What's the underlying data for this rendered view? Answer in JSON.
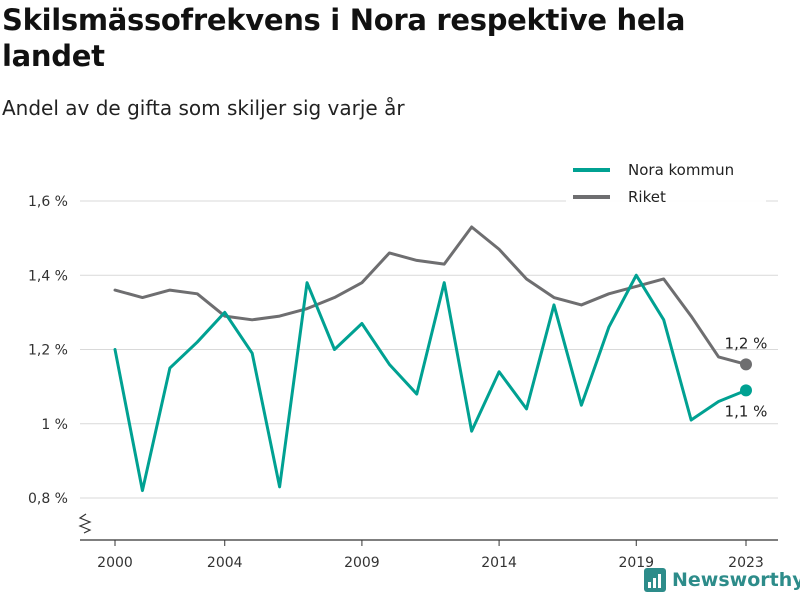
{
  "header": {
    "title": "Skilsmässofrekvens i Nora respektive hela landet",
    "subtitle": "Andel av de gifta som skiljer sig varje år"
  },
  "brand": {
    "name": "Newsworthy",
    "color": "#2d8c8a",
    "icon": "bar-chart-logo-icon"
  },
  "chart_data": {
    "type": "line",
    "x": [
      2000,
      2001,
      2002,
      2003,
      2004,
      2005,
      2006,
      2007,
      2008,
      2009,
      2010,
      2011,
      2012,
      2013,
      2014,
      2015,
      2016,
      2017,
      2018,
      2019,
      2020,
      2021,
      2022,
      2023
    ],
    "x_ticks": [
      2000,
      2004,
      2009,
      2014,
      2019,
      2023
    ],
    "y_ticks": [
      0.8,
      1.0,
      1.2,
      1.4,
      1.6
    ],
    "y_tick_labels": [
      "0,8 %",
      "1 %",
      "1,2 %",
      "1,4 %",
      "1,6 %"
    ],
    "ylim": [
      0.7,
      1.65
    ],
    "y_axis_break": true,
    "grid": "horizontal",
    "legend_position": "top-right",
    "series": [
      {
        "name": "Nora kommun",
        "color": "#00a192",
        "values": [
          1.2,
          0.82,
          1.15,
          1.22,
          1.3,
          1.19,
          0.83,
          1.38,
          1.2,
          1.27,
          1.16,
          1.08,
          1.38,
          0.98,
          1.14,
          1.04,
          1.32,
          1.05,
          1.26,
          1.4,
          1.28,
          1.01,
          1.06,
          1.09
        ],
        "end_label": "1,1 %"
      },
      {
        "name": "Riket",
        "color": "#6e6e70",
        "values": [
          1.36,
          1.34,
          1.36,
          1.35,
          1.29,
          1.28,
          1.29,
          1.31,
          1.34,
          1.38,
          1.46,
          1.44,
          1.43,
          1.53,
          1.47,
          1.39,
          1.34,
          1.32,
          1.35,
          1.37,
          1.39,
          1.29,
          1.18,
          1.16
        ],
        "end_label": "1,2 %"
      }
    ]
  }
}
